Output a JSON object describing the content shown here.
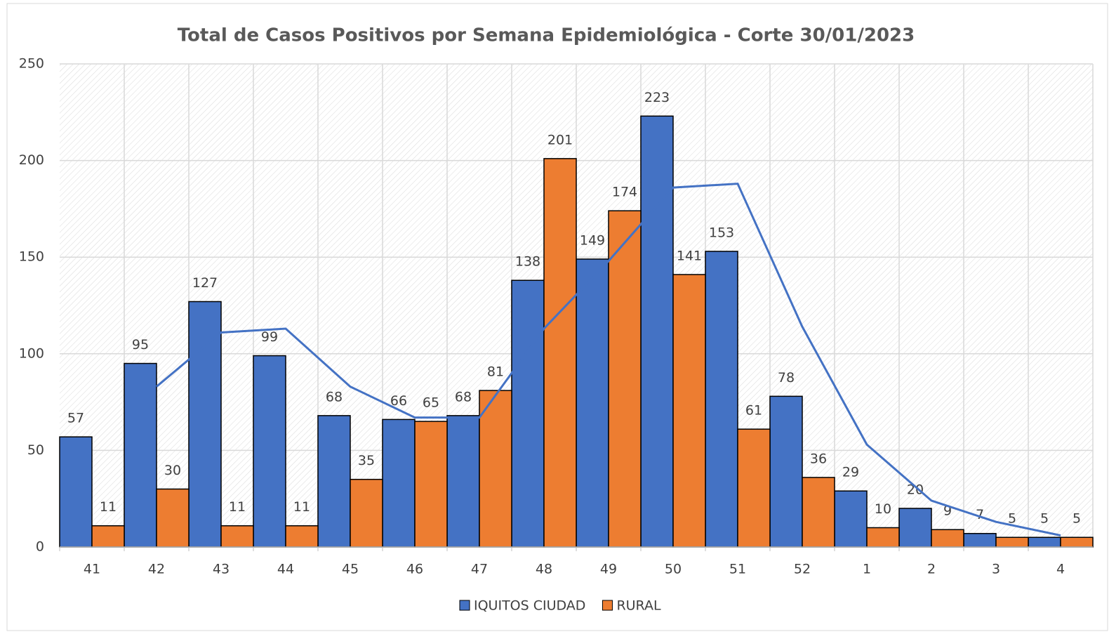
{
  "chart_data": {
    "type": "bar",
    "title": "Total de Casos Positivos por Semana Epidemiológica - Corte 30/01/2023",
    "categories": [
      "41",
      "42",
      "43",
      "44",
      "45",
      "46",
      "47",
      "48",
      "49",
      "50",
      "51",
      "52",
      "1",
      "2",
      "3",
      "4"
    ],
    "series": [
      {
        "name": "IQUITOS CIUDAD",
        "color": "#4472c4",
        "values": [
          57,
          95,
          127,
          99,
          68,
          66,
          68,
          138,
          149,
          223,
          153,
          78,
          29,
          20,
          7,
          5
        ]
      },
      {
        "name": "RURAL",
        "color": "#ed7d31",
        "values": [
          11,
          30,
          11,
          11,
          35,
          65,
          81,
          201,
          174,
          141,
          61,
          36,
          10,
          9,
          5,
          5
        ]
      }
    ],
    "trend": {
      "type": "line",
      "color": "#4472c4",
      "values": [
        null,
        83,
        111,
        113,
        83,
        67,
        67,
        113,
        148,
        186,
        188,
        114,
        53,
        24,
        13,
        6
      ]
    },
    "ylim": [
      0,
      250
    ],
    "yticks": [
      0,
      50,
      100,
      150,
      200,
      250
    ],
    "grid": true
  }
}
